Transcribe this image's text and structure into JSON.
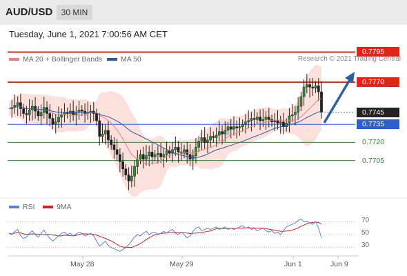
{
  "header": {
    "pair": "AUD/USD",
    "timeframe": "30 MIN"
  },
  "timestamp": "Tuesday, June 1, 2021 7:00:56 AM CET",
  "legend": {
    "ma20_label": "MA 20 + Bollinger Bands",
    "ma50_label": "MA 50",
    "credit": "Research © 2021 Trading Central",
    "rsi_label": "RSI",
    "rsi_ma_label": "9MA"
  },
  "colors": {
    "resistance": "#e0251b",
    "support": "#3a7d3a",
    "current": "#222222",
    "pivot": "#2b5fce",
    "arrow": "#2f5f9e",
    "ma20": "#e88080",
    "ma50": "#2c5aa0",
    "bands_fill": "#fbe0dc",
    "rsi": "#5b7fd9",
    "rsi_ma": "#d02020"
  },
  "levels": [
    {
      "value": "0.7795",
      "kind": "resistance"
    },
    {
      "value": "0.7770",
      "kind": "resistance"
    },
    {
      "value": "0.7745",
      "kind": "current"
    },
    {
      "value": "0.7735",
      "kind": "pivot"
    },
    {
      "value": "0.7720",
      "kind": "support"
    },
    {
      "value": "0.7705",
      "kind": "support"
    }
  ],
  "rsi_ticks": [
    "70",
    "50",
    "30"
  ],
  "x_axis": [
    "May 28",
    "May 29",
    "Jun 1",
    "Jun 9"
  ],
  "chart_data": {
    "type": "candlestick",
    "ylim": [
      0.7675,
      0.7805
    ],
    "price_path": [
      0.7748,
      0.7749,
      0.7751,
      0.7753,
      0.7748,
      0.7744,
      0.7743,
      0.7747,
      0.775,
      0.7746,
      0.7742,
      0.7745,
      0.7749,
      0.7744,
      0.774,
      0.7735,
      0.7737,
      0.7741,
      0.7743,
      0.7745,
      0.7744,
      0.7746,
      0.7743,
      0.7745,
      0.7747,
      0.7746,
      0.7744,
      0.7745,
      0.7746,
      0.7744,
      0.7738,
      0.7725,
      0.7727,
      0.773,
      0.7722,
      0.7718,
      0.7714,
      0.771,
      0.7704,
      0.7698,
      0.7693,
      0.7688,
      0.7692,
      0.77,
      0.7706,
      0.771,
      0.7706,
      0.7709,
      0.7712,
      0.7708,
      0.771,
      0.7711,
      0.7708,
      0.771,
      0.7713,
      0.7711,
      0.7714,
      0.7716,
      0.7712,
      0.7711,
      0.7714,
      0.771,
      0.7706,
      0.7709,
      0.7716,
      0.7721,
      0.7724,
      0.772,
      0.7722,
      0.7725,
      0.7724,
      0.7726,
      0.7729,
      0.7727,
      0.773,
      0.7733,
      0.7731,
      0.7733,
      0.7732,
      0.7733,
      0.7735,
      0.7737,
      0.7738,
      0.774,
      0.7739,
      0.7741,
      0.7738,
      0.7739,
      0.7741,
      0.7739,
      0.7737,
      0.7738,
      0.7736,
      0.7737,
      0.7733,
      0.7736,
      0.7742,
      0.7743,
      0.7745,
      0.775,
      0.7758,
      0.7766,
      0.7768,
      0.7766,
      0.7765,
      0.7767,
      0.7762,
      0.7745
    ],
    "rsi": [
      52,
      50,
      55,
      58,
      48,
      44,
      46,
      52,
      56,
      50,
      46,
      52,
      57,
      50,
      44,
      40,
      44,
      48,
      52,
      54,
      50,
      52,
      48,
      51,
      54,
      52,
      48,
      50,
      52,
      48,
      40,
      32,
      36,
      40,
      33,
      30,
      28,
      26,
      24,
      27,
      30,
      34,
      40,
      46,
      50,
      48,
      52,
      55,
      50,
      53,
      54,
      50,
      52,
      55,
      52,
      56,
      58,
      52,
      50,
      54,
      50,
      45,
      48,
      55,
      60,
      62,
      56,
      58,
      60,
      58,
      60,
      62,
      58,
      60,
      62,
      58,
      60,
      58,
      60,
      62,
      64,
      60,
      62,
      58,
      60,
      56,
      58,
      60,
      56,
      54,
      56,
      52,
      54,
      50,
      56,
      62,
      64,
      66,
      68,
      72,
      74,
      70,
      71,
      68,
      66,
      70,
      60,
      45
    ],
    "rsi_ylim": [
      20,
      80
    ]
  }
}
